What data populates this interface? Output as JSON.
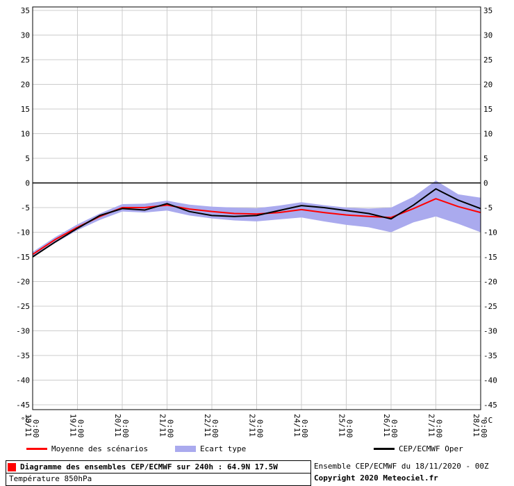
{
  "chart_data": {
    "type": "line",
    "title": "Diagramme des ensembles CEP/ECMWF sur 240h : 64.9N 17.5W",
    "subtitle": "Température 850hPa",
    "run_info": "Ensemble CEP/ECMWF du 18/11/2020 - 00Z",
    "copyright": "Copyright 2020 Meteociel.fr",
    "y_unit": "°C",
    "xlabel": "",
    "ylabel": "",
    "ylim": [
      -45,
      35
    ],
    "grid": true,
    "legend_position": "bottom",
    "y_ticks": [
      35,
      30,
      25,
      20,
      15,
      10,
      5,
      0,
      -5,
      -10,
      -15,
      -20,
      -25,
      -30,
      -35,
      -40,
      -45
    ],
    "x_ticks": [
      {
        "date": "18/11",
        "time": "0:00"
      },
      {
        "date": "19/11",
        "time": "0:00"
      },
      {
        "date": "20/11",
        "time": "0:00"
      },
      {
        "date": "21/11",
        "time": "0:00"
      },
      {
        "date": "22/11",
        "time": "0:00"
      },
      {
        "date": "23/11",
        "time": "0:00"
      },
      {
        "date": "24/11",
        "time": "0:00"
      },
      {
        "date": "25/11",
        "time": "0:00"
      },
      {
        "date": "26/11",
        "time": "0:00"
      },
      {
        "date": "27/11",
        "time": "0:00"
      },
      {
        "date": "28/11",
        "time": "0:00"
      }
    ],
    "x_hours": [
      0,
      12,
      24,
      36,
      48,
      60,
      72,
      84,
      96,
      108,
      120,
      132,
      144,
      156,
      168,
      180,
      192,
      204,
      216,
      228,
      240
    ],
    "series": [
      {
        "id": "mean-line",
        "name": "Moyenne des scénarios",
        "color": "#ff0000",
        "values": [
          -14.5,
          -11.5,
          -9.0,
          -6.8,
          -5.0,
          -5.0,
          -4.5,
          -5.3,
          -5.8,
          -6.2,
          -6.3,
          -6.0,
          -5.4,
          -6.0,
          -6.5,
          -6.8,
          -7.0,
          -5.2,
          -3.2,
          -4.8,
          -6.0
        ]
      },
      {
        "id": "oper-line",
        "name": "CEP/ECMWF Oper",
        "color": "#000000",
        "values": [
          -15.0,
          -12.0,
          -9.2,
          -6.6,
          -5.2,
          -5.5,
          -4.2,
          -5.8,
          -6.6,
          -6.8,
          -6.6,
          -5.6,
          -4.6,
          -5.0,
          -5.6,
          -6.2,
          -7.3,
          -4.5,
          -1.2,
          -3.5,
          -5.2
        ]
      }
    ],
    "band": {
      "name": "Ecart type",
      "color": "#aaaaee",
      "upper": [
        -14.0,
        -11.0,
        -8.4,
        -6.2,
        -4.3,
        -4.2,
        -3.6,
        -4.4,
        -4.8,
        -5.0,
        -5.1,
        -4.6,
        -3.9,
        -4.5,
        -5.0,
        -5.2,
        -5.0,
        -2.8,
        0.5,
        -2.3,
        -3.0
      ],
      "lower": [
        -15.0,
        -12.2,
        -9.6,
        -7.5,
        -5.8,
        -6.0,
        -5.6,
        -6.6,
        -7.2,
        -7.6,
        -7.8,
        -7.4,
        -7.0,
        -7.8,
        -8.5,
        -9.0,
        -10.0,
        -8.0,
        -6.8,
        -8.3,
        -10.0
      ]
    },
    "colors": {
      "grid": "#cccccc",
      "axis": "#000000",
      "zero_line": "#000000",
      "title_marker": "#ff0000"
    }
  }
}
